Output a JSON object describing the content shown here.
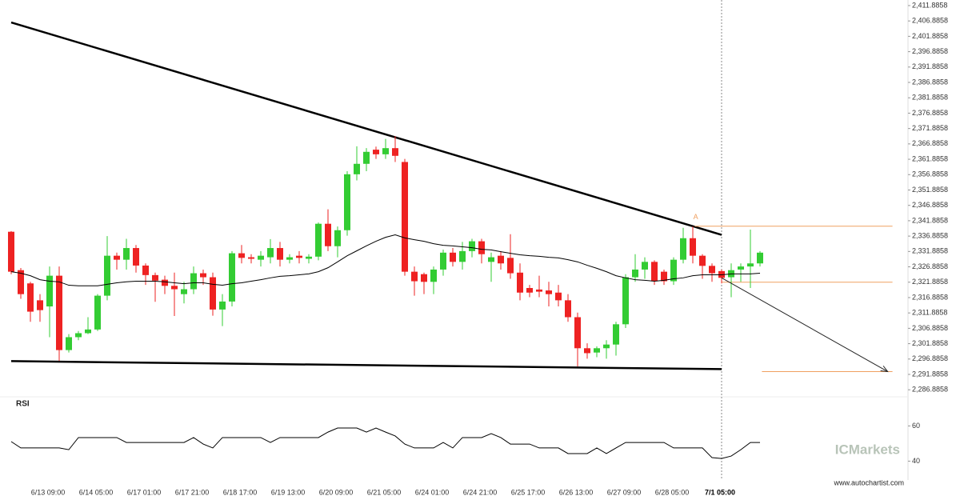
{
  "chart_data": [
    {
      "type": "candlestick",
      "categories": [
        null,
        null,
        null,
        null,
        "6/13 09:00",
        null,
        null,
        null,
        null,
        "6/14 05:00",
        null,
        null,
        null,
        null,
        "6/17 01:00",
        null,
        null,
        null,
        null,
        "6/17 21:00",
        null,
        null,
        null,
        null,
        "6/18 17:00",
        null,
        null,
        null,
        null,
        "6/19 13:00",
        null,
        null,
        null,
        null,
        "6/20 09:00",
        null,
        null,
        null,
        null,
        "6/21 05:00",
        null,
        null,
        null,
        null,
        "6/24 01:00",
        null,
        null,
        null,
        null,
        "6/24 21:00",
        null,
        null,
        null,
        null,
        "6/25 17:00",
        null,
        null,
        null,
        null,
        "6/26 13:00",
        null,
        null,
        null,
        null,
        "6/27 09:00",
        null,
        null,
        null,
        null,
        "6/28 05:00",
        null,
        null,
        null,
        null,
        "7/1 05:00",
        null,
        null,
        null,
        null
      ],
      "highlight": 74,
      "up_color": "#33cc33",
      "down_color": "#ee2222",
      "open": [
        2338.3,
        2325.8,
        2321.5,
        2316.0,
        2314.0,
        2324.0,
        2299.8,
        2304.0,
        2305.3,
        2306.5,
        2317.5,
        2330.5,
        2329.2,
        2333.0,
        2327.3,
        2324.2,
        2322.7,
        2320.7,
        2318.0,
        2319.6,
        2324.8,
        2323.5,
        2313.0,
        2315.6,
        2331.3,
        2330.0,
        2329.2,
        2330.0,
        2333.0,
        2329.2,
        2330.5,
        2329.5,
        2330.2,
        2340.9,
        2333.6,
        2338.8,
        2357.0,
        2360.4,
        2365.0,
        2363.5,
        2365.5,
        2361.0,
        2325.3,
        2324.5,
        2322.0,
        2326.0,
        2331.5,
        2328.5,
        2332.0,
        2335.2,
        2328.5,
        2330.5,
        2329.8,
        2325.0,
        2320.0,
        2319.5,
        2319.2,
        2318.5,
        2316.0,
        2310.5,
        2300.4,
        2299.0,
        2300.4,
        2301.6,
        2308.2,
        2323.5,
        2326.0,
        2328.5,
        2325.3,
        2322.2,
        2329.2,
        2336.2,
        2330.5,
        2327.2,
        2325.5,
        2323.5,
        2326.0,
        2327.0,
        2328.0
      ],
      "high": [
        2338.5,
        2326.5,
        2322.0,
        2318.0,
        2327.0,
        2327.0,
        2305.0,
        2306.0,
        2310.5,
        2318.0,
        2336.9,
        2331.5,
        2336.0,
        2334.0,
        2328.0,
        2325.0,
        2324.0,
        2325.0,
        2322.0,
        2327.0,
        2326.0,
        2325.0,
        2318.0,
        2332.0,
        2334.0,
        2331.0,
        2332.0,
        2335.9,
        2335.0,
        2331.0,
        2332.0,
        2331.0,
        2341.3,
        2345.6,
        2340.0,
        2358.0,
        2366.1,
        2365.5,
        2366.0,
        2368.5,
        2369.4,
        2362.0,
        2327.0,
        2325.0,
        2327.0,
        2332.5,
        2333.0,
        2335.0,
        2336.0,
        2336.0,
        2331.5,
        2332.0,
        2337.5,
        2328.0,
        2321.0,
        2324.0,
        2322.0,
        2321.0,
        2318.0,
        2312.0,
        2302.0,
        2301.0,
        2303.0,
        2309.0,
        2324.5,
        2331.0,
        2330.0,
        2329.0,
        2326.0,
        2330.0,
        2339.6,
        2340.0,
        2331.0,
        2328.0,
        2326.0,
        2328.0,
        2328.0,
        2339.0,
        2332.0
      ],
      "low": [
        2324.5,
        2316.5,
        2309.0,
        2309.0,
        2304.0,
        2296.3,
        2299.0,
        2303.0,
        2305.0,
        2306.0,
        2316.0,
        2326.0,
        2326.0,
        2325.0,
        2321.0,
        2315.5,
        2318.0,
        2310.9,
        2315.0,
        2318.0,
        2321.0,
        2311.0,
        2307.6,
        2314.0,
        2328.0,
        2328.0,
        2327.0,
        2328.0,
        2327.0,
        2328.0,
        2328.0,
        2328.0,
        2329.0,
        2332.0,
        2330.0,
        2337.0,
        2355.0,
        2358.0,
        2362.0,
        2362.0,
        2361.0,
        2324.0,
        2317.5,
        2318.0,
        2318.0,
        2324.0,
        2327.0,
        2326.0,
        2330.0,
        2328.0,
        2322.0,
        2326.0,
        2323.0,
        2316.0,
        2317.0,
        2317.0,
        2314.0,
        2314.0,
        2309.0,
        2294.5,
        2297.0,
        2297.5,
        2297.0,
        2298.0,
        2307.0,
        2322.0,
        2323.0,
        2321.0,
        2321.0,
        2321.0,
        2328.0,
        2328.0,
        2323.0,
        2322.0,
        2321.5,
        2317.0,
        2322.0,
        2320.0,
        2327.0
      ],
      "close": [
        2325.3,
        2318.0,
        2312.3,
        2312.8,
        2324.0,
        2299.8,
        2304.0,
        2305.3,
        2306.5,
        2317.5,
        2330.5,
        2329.2,
        2333.0,
        2327.3,
        2324.2,
        2322.4,
        2320.7,
        2319.6,
        2319.6,
        2324.8,
        2323.5,
        2313.0,
        2315.6,
        2331.3,
        2329.8,
        2329.5,
        2330.5,
        2333.0,
        2329.2,
        2330.0,
        2329.8,
        2330.2,
        2340.9,
        2333.6,
        2338.8,
        2357.0,
        2360.4,
        2364.3,
        2363.5,
        2365.5,
        2363.0,
        2325.3,
        2322.2,
        2322.0,
        2326.0,
        2331.5,
        2328.5,
        2332.0,
        2335.2,
        2331.0,
        2330.0,
        2328.0,
        2324.8,
        2318.5,
        2318.5,
        2318.8,
        2318.0,
        2316.0,
        2310.5,
        2300.4,
        2298.8,
        2300.4,
        2301.6,
        2308.2,
        2323.5,
        2326.0,
        2328.5,
        2322.2,
        2322.2,
        2329.2,
        2336.2,
        2330.5,
        2327.2,
        2324.8,
        2323.3,
        2325.8,
        2327.0,
        2328.0,
        2331.5
      ],
      "series": [
        {
          "color": "#000000",
          "values": [
            2325.3,
            2324.8,
            2324.0,
            2322.7,
            2322.2,
            2322.0,
            2320.9,
            2320.7,
            2320.7,
            2320.7,
            2321.2,
            2321.7,
            2322.0,
            2322.2,
            2322.2,
            2322.2,
            2322.0,
            2321.7,
            2321.4,
            2321.7,
            2321.7,
            2321.2,
            2320.9,
            2321.4,
            2321.7,
            2322.2,
            2322.7,
            2323.3,
            2323.8,
            2324.0,
            2324.3,
            2324.6,
            2325.3,
            2326.6,
            2328.5,
            2330.5,
            2332.1,
            2333.7,
            2335.2,
            2336.5,
            2337.3,
            2336.3,
            2335.7,
            2335.2,
            2334.4,
            2333.9,
            2333.7,
            2333.4,
            2333.1,
            2332.6,
            2332.4,
            2331.8,
            2331.3,
            2330.8,
            2330.5,
            2330.3,
            2330.0,
            2329.8,
            2329.2,
            2328.5,
            2327.4,
            2326.4,
            2325.3,
            2324.0,
            2323.3,
            2322.7,
            2322.5,
            2322.2,
            2322.5,
            2323.0,
            2323.3,
            2324.0,
            2324.3,
            2324.3,
            2324.3,
            2324.6,
            2324.6,
            2324.6,
            2324.8
          ]
        }
      ],
      "lines": [
        {
          "color": "#000000",
          "x": [
            0,
            74
          ],
          "y": [
            2406.4,
            2337.3
          ]
        },
        {
          "color": "#000000",
          "x": [
            0,
            74
          ],
          "y": [
            2296.2,
            2293.6
          ]
        }
      ],
      "levels": [
        {
          "color": "#f0a060",
          "x": [
            71.2,
            91.8
          ],
          "y": 2340.1
        },
        {
          "color": "#f0a060",
          "x": [
            74,
            91.8
          ],
          "y": 2321.9
        },
        {
          "color": "#f0a060",
          "x": [
            78.2,
            91.8
          ],
          "y": 2292.8
        }
      ],
      "arrow": {
        "color": "#222222",
        "x": [
          74,
          91.3
        ],
        "y": [
          2323.3,
          2292.8
        ]
      },
      "annotations": [
        {
          "text": "A",
          "x": 71.3,
          "y": 2341.4,
          "color": "#f0a060"
        }
      ],
      "ylim": [
        2284.6,
        2413.7
      ],
      "yticks": [
        {
          "value": 2286.8858,
          "label": "2,286.8858"
        },
        {
          "value": 2291.8858,
          "label": "2,291.8858"
        },
        {
          "value": 2296.8858,
          "label": "2,296.8858"
        },
        {
          "value": 2301.8858,
          "label": "2,301.8858"
        },
        {
          "value": 2306.8858,
          "label": "2,306.8858"
        },
        {
          "value": 2311.8858,
          "label": "2,311.8858"
        },
        {
          "value": 2316.8858,
          "label": "2,316.8858"
        },
        {
          "value": 2321.8858,
          "label": "2,321.8858"
        },
        {
          "value": 2326.8858,
          "label": "2,326.8858"
        },
        {
          "value": 2331.8858,
          "label": "2,331.8858"
        },
        {
          "value": 2336.8858,
          "label": "2,336.8858"
        },
        {
          "value": 2341.8858,
          "label": "2,341.8858"
        },
        {
          "value": 2346.8858,
          "label": "2,346.8858"
        },
        {
          "value": 2351.8858,
          "label": "2,351.8858"
        },
        {
          "value": 2356.8858,
          "label": "2,356.8858"
        },
        {
          "value": 2361.8858,
          "label": "2,361.8858"
        },
        {
          "value": 2366.8858,
          "label": "2,366.8858"
        },
        {
          "value": 2371.8858,
          "label": "2,371.8858"
        },
        {
          "value": 2376.8858,
          "label": "2,376.8858"
        },
        {
          "value": 2381.8858,
          "label": "2,381.8858"
        },
        {
          "value": 2386.8858,
          "label": "2,386.8858"
        },
        {
          "value": 2391.8858,
          "label": "2,391.8858"
        },
        {
          "value": 2396.8858,
          "label": "2,396.8858"
        },
        {
          "value": 2401.8858,
          "label": "2,401.8858"
        },
        {
          "value": 2406.8858,
          "label": "2,406.8858"
        },
        {
          "value": 2411.8858,
          "label": "2,411.8858"
        }
      ],
      "grid": false
    },
    {
      "type": "line",
      "title": "RSI",
      "series": [
        {
          "color": "#000000",
          "values": [
            51.1,
            47.5,
            47.5,
            47.5,
            47.5,
            47.5,
            46.5,
            53.4,
            53.4,
            53.4,
            53.4,
            53.4,
            50.6,
            50.6,
            50.6,
            50.6,
            50.6,
            50.6,
            50.6,
            53.4,
            49.7,
            47.5,
            53.4,
            53.4,
            53.4,
            53.4,
            53.4,
            50.6,
            53.4,
            53.4,
            53.4,
            53.4,
            53.4,
            56.5,
            58.8,
            58.8,
            58.8,
            56.5,
            58.8,
            56.5,
            54.3,
            49.7,
            47.5,
            47.5,
            47.5,
            50.6,
            47.5,
            53.4,
            53.4,
            53.4,
            55.6,
            53.4,
            49.7,
            49.7,
            49.7,
            47.5,
            47.5,
            47.5,
            44.3,
            44.3,
            44.3,
            47.5,
            44.3,
            47.5,
            50.6,
            50.6,
            50.6,
            50.6,
            50.6,
            47.5,
            47.5,
            47.5,
            47.5,
            42.0,
            41.5,
            42.9,
            46.5,
            50.6,
            50.6
          ]
        }
      ],
      "ylim": [
        30.2,
        77
      ],
      "yticks": [
        40,
        60
      ],
      "grid": false
    }
  ],
  "watermark": "ICMarkets",
  "source": "www.autochartist.com"
}
